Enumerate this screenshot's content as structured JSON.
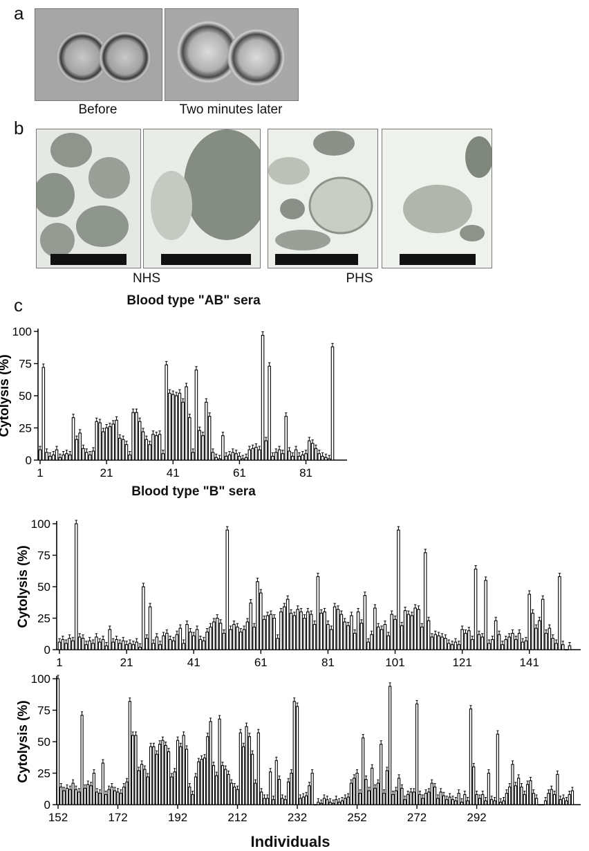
{
  "panel_a": {
    "letter": "a",
    "captions": [
      "Before",
      "Two minutes later"
    ]
  },
  "panel_b": {
    "letter": "b",
    "captions": [
      "NHS",
      "PHS"
    ]
  },
  "panel_c": {
    "letter": "c"
  },
  "chart_data": [
    {
      "type": "bar",
      "title": "Blood type \"AB\" sera",
      "ylabel": "Cytolysis (%)",
      "xlabel": "",
      "ylim": [
        0,
        100
      ],
      "yticks": [
        0,
        25,
        50,
        75,
        100
      ],
      "xticks": [
        1,
        21,
        41,
        61,
        81
      ],
      "x_start": 1,
      "values": [
        8,
        72,
        6,
        3,
        4,
        8,
        2,
        4,
        5,
        4,
        33,
        16,
        21,
        9,
        6,
        4,
        7,
        30,
        29,
        22,
        25,
        26,
        28,
        31,
        17,
        16,
        12,
        4,
        37,
        37,
        30,
        22,
        16,
        12,
        20,
        19,
        20,
        5,
        74,
        52,
        51,
        50,
        52,
        45,
        57,
        33,
        6,
        70,
        23,
        19,
        45,
        34,
        6,
        2,
        1,
        19,
        3,
        4,
        6,
        5,
        3,
        1,
        2,
        8,
        9,
        10,
        8,
        97,
        15,
        73,
        3,
        6,
        8,
        5,
        34,
        7,
        3,
        8,
        3,
        4,
        5,
        15,
        13,
        9,
        5,
        3,
        2,
        1,
        88
      ]
    },
    {
      "type": "bar",
      "title": "Blood type \"B\" sera",
      "ylabel": "Cytolysis (%)",
      "xlabel": "",
      "ylim": [
        0,
        100
      ],
      "yticks": [
        0,
        25,
        50,
        75,
        100
      ],
      "xticks": [
        1,
        21,
        41,
        61,
        81,
        101,
        121,
        141
      ],
      "x_start": 1,
      "values": [
        6,
        8,
        5,
        9,
        7,
        100,
        10,
        9,
        4,
        7,
        5,
        10,
        6,
        8,
        3,
        16,
        6,
        8,
        5,
        7,
        4,
        5,
        4,
        6,
        2,
        50,
        9,
        34,
        5,
        10,
        4,
        11,
        13,
        8,
        7,
        12,
        17,
        5,
        20,
        14,
        11,
        16,
        8,
        7,
        14,
        18,
        22,
        25,
        21,
        13,
        95,
        16,
        20,
        18,
        14,
        16,
        22,
        37,
        18,
        54,
        45,
        24,
        27,
        28,
        25,
        9,
        30,
        34,
        40,
        29,
        27,
        32,
        30,
        25,
        30,
        28,
        20,
        58,
        29,
        30,
        20,
        16,
        34,
        32,
        28,
        22,
        19,
        27,
        13,
        30,
        21,
        43,
        6,
        12,
        33,
        18,
        16,
        20,
        11,
        28,
        24,
        95,
        19,
        31,
        28,
        27,
        33,
        32,
        18,
        77,
        23,
        10,
        12,
        11,
        10,
        9,
        5,
        4,
        6,
        4,
        16,
        13,
        15,
        8,
        64,
        12,
        10,
        55,
        5,
        8,
        23,
        12,
        4,
        8,
        10,
        13,
        8,
        13,
        6,
        7,
        44,
        29,
        17,
        23,
        40,
        13,
        17,
        9,
        5,
        58,
        4,
        0,
        3
      ]
    },
    {
      "type": "bar",
      "title": "",
      "ylabel": "Cytolysis (%)",
      "xlabel": "Individuals",
      "ylim": [
        0,
        100
      ],
      "yticks": [
        0,
        25,
        50,
        75,
        100
      ],
      "xticks": [
        152,
        172,
        192,
        212,
        232,
        252,
        272,
        292
      ],
      "x_start": 152,
      "values": [
        100,
        14,
        11,
        13,
        12,
        17,
        12,
        10,
        71,
        13,
        16,
        15,
        25,
        10,
        9,
        33,
        8,
        12,
        14,
        11,
        10,
        9,
        14,
        18,
        82,
        55,
        55,
        27,
        32,
        28,
        22,
        46,
        46,
        40,
        48,
        51,
        47,
        42,
        22,
        26,
        51,
        46,
        55,
        44,
        14,
        8,
        22,
        34,
        36,
        37,
        54,
        66,
        31,
        23,
        68,
        31,
        28,
        24,
        17,
        14,
        12,
        57,
        46,
        62,
        54,
        40,
        17,
        57,
        10,
        5,
        5,
        26,
        4,
        35,
        20,
        5,
        4,
        18,
        25,
        82,
        78,
        5,
        6,
        7,
        15,
        25,
        0,
        2,
        1,
        5,
        4,
        2,
        1,
        4,
        2,
        3,
        5,
        6,
        17,
        21,
        25,
        9,
        53,
        20,
        11,
        29,
        13,
        17,
        48,
        9,
        27,
        94,
        8,
        11,
        21,
        13,
        4,
        8,
        10,
        10,
        80,
        8,
        5,
        9,
        10,
        17,
        14,
        5,
        10,
        7,
        4,
        6,
        4,
        3,
        9,
        2,
        8,
        3,
        76,
        30,
        8,
        5,
        8,
        3,
        25,
        4,
        3,
        56,
        2,
        3,
        9,
        14,
        32,
        15,
        21,
        14,
        8,
        16,
        19,
        9,
        5,
        0,
        0,
        3,
        9,
        12,
        8,
        24,
        4,
        5,
        3,
        8,
        11
      ]
    }
  ]
}
